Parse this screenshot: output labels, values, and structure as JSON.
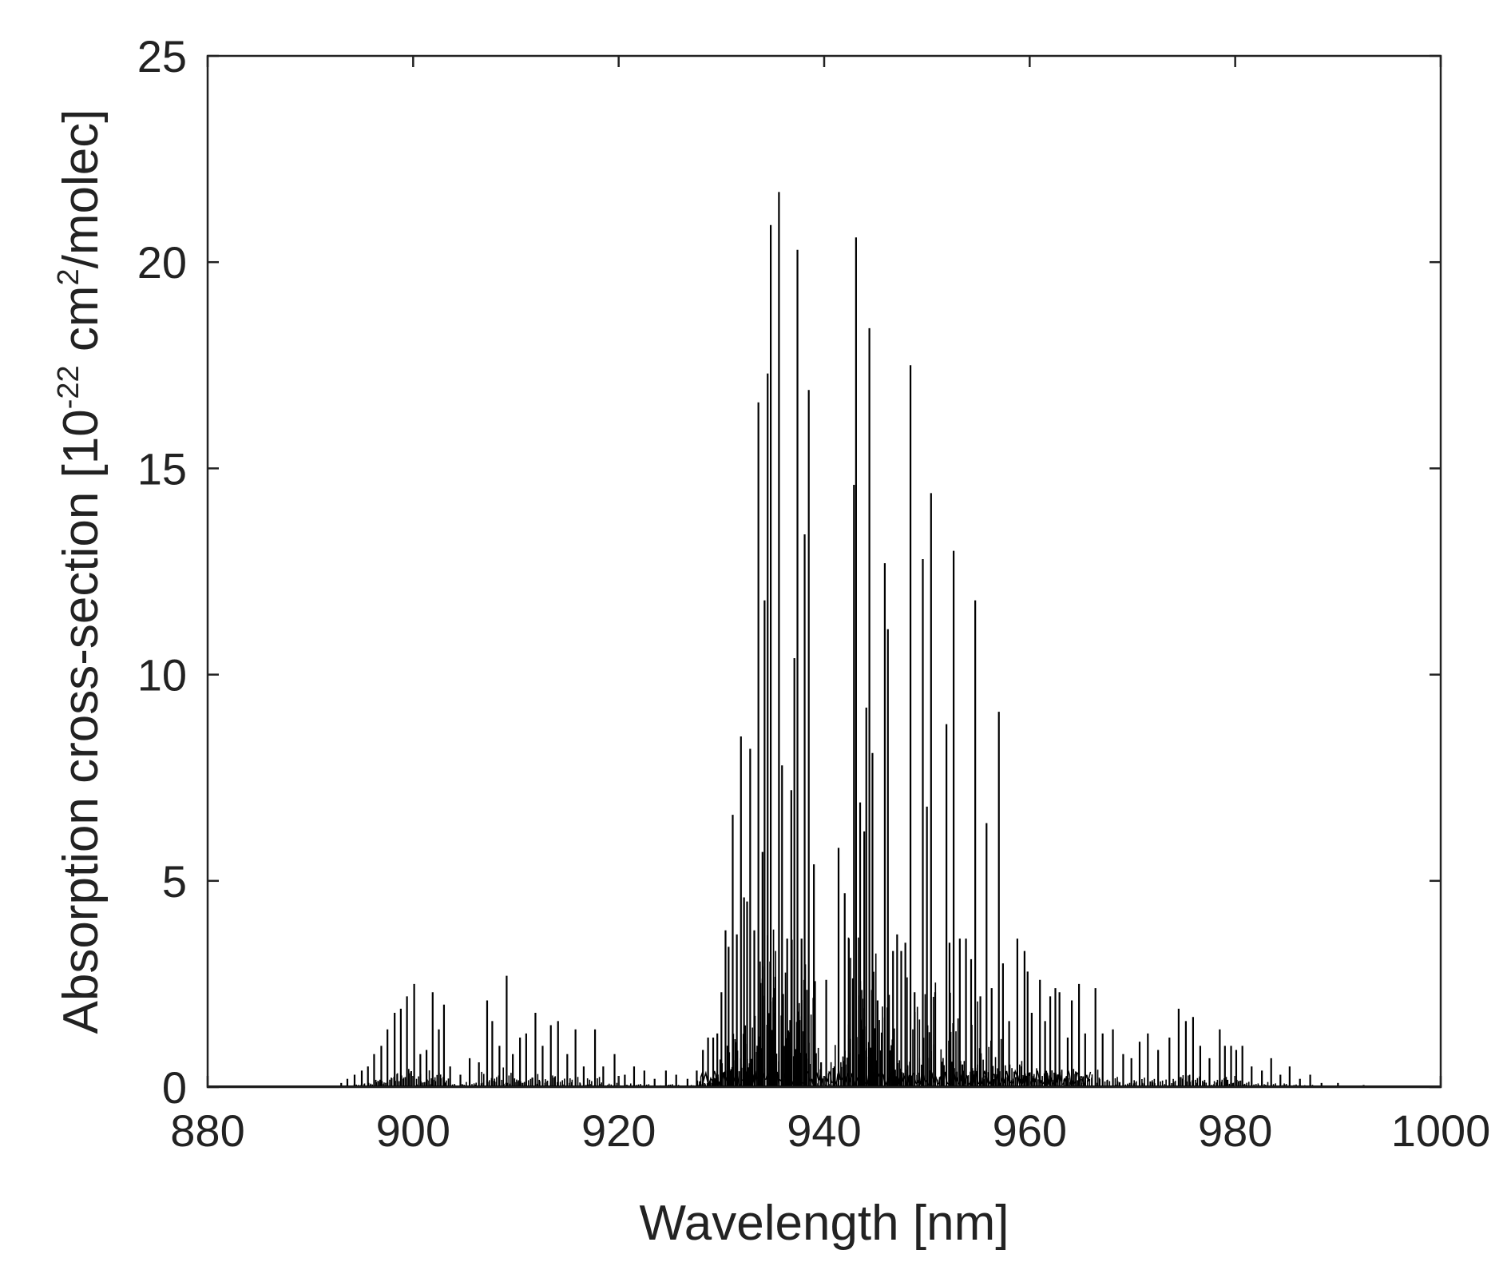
{
  "chart_data": {
    "type": "line",
    "title": "",
    "xlabel": "Wavelength [nm]",
    "ylabel": {
      "prefix": "Absorption cross-section [10",
      "exp1": "-22",
      "mid": " cm",
      "exp2": "2",
      "suffix": "/molec]"
    },
    "xlim": [
      880,
      1000
    ],
    "ylim": [
      0,
      25
    ],
    "xticks": [
      880,
      900,
      920,
      940,
      960,
      980,
      1000
    ],
    "yticks": [
      0,
      5,
      10,
      15,
      20,
      25
    ],
    "xtick_labels": [
      "880",
      "900",
      "920",
      "940",
      "960",
      "980",
      "1000"
    ],
    "ytick_labels": [
      "0",
      "5",
      "10",
      "15",
      "20",
      "25"
    ],
    "grid": false,
    "legend": "none",
    "line_color": "#000000",
    "series": [
      {
        "lines": [
          [
            893.0,
            0.1
          ],
          [
            893.6,
            0.2
          ],
          [
            894.3,
            0.3
          ],
          [
            895.0,
            0.4
          ],
          [
            895.6,
            0.5
          ],
          [
            896.2,
            0.8
          ],
          [
            896.9,
            1.0
          ],
          [
            897.5,
            1.4
          ],
          [
            898.2,
            1.8
          ],
          [
            898.8,
            1.9
          ],
          [
            899.4,
            2.2
          ],
          [
            900.1,
            2.5
          ],
          [
            900.7,
            0.8
          ],
          [
            901.3,
            0.9
          ],
          [
            901.9,
            2.3
          ],
          [
            902.5,
            1.4
          ],
          [
            903.0,
            2.0
          ],
          [
            903.6,
            0.5
          ],
          [
            904.6,
            0.3
          ],
          [
            905.5,
            0.7
          ],
          [
            906.4,
            0.6
          ],
          [
            907.2,
            2.1
          ],
          [
            907.7,
            1.6
          ],
          [
            908.4,
            1.0
          ],
          [
            909.1,
            2.7
          ],
          [
            909.7,
            0.8
          ],
          [
            910.4,
            1.2
          ],
          [
            911.0,
            1.3
          ],
          [
            911.9,
            1.8
          ],
          [
            912.6,
            1.0
          ],
          [
            913.4,
            1.5
          ],
          [
            914.1,
            1.6
          ],
          [
            915.0,
            0.8
          ],
          [
            915.8,
            1.4
          ],
          [
            916.6,
            0.5
          ],
          [
            917.7,
            1.4
          ],
          [
            918.5,
            0.5
          ],
          [
            919.6,
            0.8
          ],
          [
            920.6,
            0.3
          ],
          [
            921.5,
            0.5
          ],
          [
            922.5,
            0.4
          ],
          [
            923.5,
            0.2
          ],
          [
            924.6,
            0.4
          ],
          [
            925.6,
            0.3
          ],
          [
            926.7,
            0.2
          ],
          [
            927.6,
            0.4
          ],
          [
            928.2,
            0.9
          ],
          [
            928.7,
            1.2
          ],
          [
            929.2,
            1.2
          ],
          [
            929.6,
            1.3
          ],
          [
            930.0,
            2.3
          ],
          [
            930.4,
            3.8
          ],
          [
            930.7,
            3.4
          ],
          [
            931.1,
            6.6
          ],
          [
            931.5,
            3.7
          ],
          [
            931.9,
            8.5
          ],
          [
            932.2,
            4.6
          ],
          [
            932.5,
            4.5
          ],
          [
            932.8,
            8.2
          ],
          [
            933.2,
            3.8
          ],
          [
            933.6,
            16.6
          ],
          [
            934.0,
            5.7
          ],
          [
            934.2,
            11.8
          ],
          [
            934.5,
            17.3
          ],
          [
            934.8,
            20.9
          ],
          [
            935.2,
            2.4
          ],
          [
            935.6,
            21.7
          ],
          [
            935.9,
            7.8
          ],
          [
            936.4,
            3.6
          ],
          [
            936.8,
            7.2
          ],
          [
            937.1,
            10.4
          ],
          [
            937.4,
            20.3
          ],
          [
            937.8,
            3.6
          ],
          [
            938.1,
            13.4
          ],
          [
            938.5,
            16.9
          ],
          [
            939.0,
            5.4
          ],
          [
            939.7,
            0.6
          ],
          [
            940.2,
            2.6
          ],
          [
            941.0,
            0.5
          ],
          [
            941.4,
            5.8
          ],
          [
            942.0,
            4.7
          ],
          [
            942.4,
            3.6
          ],
          [
            942.9,
            14.6
          ],
          [
            943.1,
            20.6
          ],
          [
            943.5,
            6.9
          ],
          [
            943.9,
            6.2
          ],
          [
            944.1,
            9.2
          ],
          [
            944.4,
            18.4
          ],
          [
            944.7,
            8.1
          ],
          [
            945.2,
            2.1
          ],
          [
            945.9,
            12.7
          ],
          [
            946.2,
            11.1
          ],
          [
            946.7,
            3.3
          ],
          [
            947.1,
            3.7
          ],
          [
            947.5,
            3.3
          ],
          [
            947.9,
            3.5
          ],
          [
            948.4,
            17.5
          ],
          [
            948.8,
            2.3
          ],
          [
            949.6,
            12.8
          ],
          [
            950.0,
            6.8
          ],
          [
            950.4,
            14.4
          ],
          [
            950.8,
            2.3
          ],
          [
            951.9,
            8.8
          ],
          [
            952.2,
            3.5
          ],
          [
            952.6,
            13.0
          ],
          [
            953.2,
            3.6
          ],
          [
            953.8,
            3.6
          ],
          [
            954.3,
            3.1
          ],
          [
            954.7,
            11.8
          ],
          [
            955.2,
            2.2
          ],
          [
            955.8,
            6.4
          ],
          [
            956.3,
            2.4
          ],
          [
            957.0,
            9.1
          ],
          [
            957.4,
            3.0
          ],
          [
            958.0,
            1.6
          ],
          [
            958.8,
            3.6
          ],
          [
            959.5,
            3.3
          ],
          [
            959.8,
            2.8
          ],
          [
            960.2,
            1.8
          ],
          [
            961.0,
            2.6
          ],
          [
            961.5,
            1.6
          ],
          [
            962.0,
            2.2
          ],
          [
            962.5,
            2.4
          ],
          [
            962.9,
            2.3
          ],
          [
            963.7,
            1.2
          ],
          [
            964.1,
            2.1
          ],
          [
            964.8,
            2.5
          ],
          [
            965.4,
            1.3
          ],
          [
            966.4,
            2.4
          ],
          [
            967.1,
            1.3
          ],
          [
            968.1,
            1.4
          ],
          [
            969.1,
            0.8
          ],
          [
            969.9,
            0.7
          ],
          [
            970.7,
            1.1
          ],
          [
            971.5,
            1.3
          ],
          [
            972.5,
            0.9
          ],
          [
            973.6,
            1.2
          ],
          [
            974.5,
            1.9
          ],
          [
            975.2,
            1.6
          ],
          [
            975.9,
            1.7
          ],
          [
            976.6,
            1.0
          ],
          [
            977.5,
            0.7
          ],
          [
            978.5,
            1.4
          ],
          [
            979.0,
            1.0
          ],
          [
            979.6,
            1.0
          ],
          [
            980.1,
            0.9
          ],
          [
            980.7,
            1.0
          ],
          [
            981.6,
            0.5
          ],
          [
            982.6,
            0.4
          ],
          [
            983.5,
            0.7
          ],
          [
            984.4,
            0.3
          ],
          [
            985.3,
            0.5
          ],
          [
            986.3,
            0.2
          ],
          [
            987.3,
            0.3
          ],
          [
            988.4,
            0.1
          ],
          [
            990.0,
            0.1
          ],
          [
            992.5,
            0.05
          ]
        ]
      }
    ]
  }
}
